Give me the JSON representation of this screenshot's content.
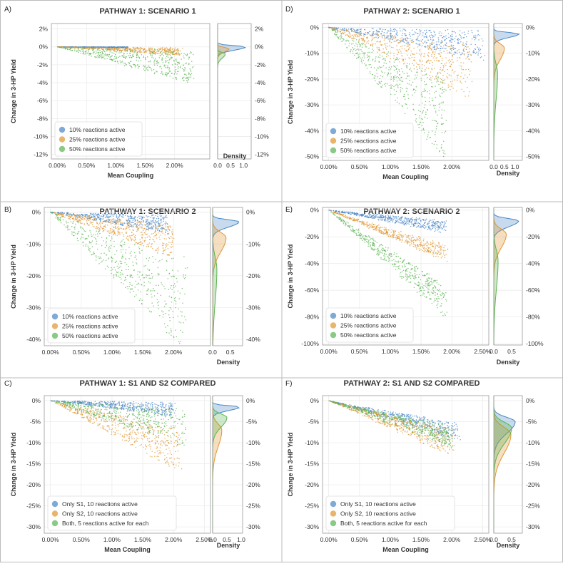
{
  "colors": {
    "s1": "#4a86c5",
    "s2": "#e0952f",
    "s3": "#59b350"
  },
  "chart_data": [
    {
      "panel": "A)",
      "title": "PATHWAY 1: SCENARIO 1",
      "type": "scatter",
      "xlabel": "Mean Coupling",
      "ylabel": "Change in 3-HP Yield",
      "density_label": "Density",
      "x_ticks": [
        "0.00%",
        "0.50%",
        "1.00%",
        "1.50%",
        "2.00%"
      ],
      "y_ticks": [
        "2%",
        "0%",
        "-2%",
        "-4%",
        "-6%",
        "-8%",
        "-10%",
        "-12%"
      ],
      "density_ticks": [
        "0.0",
        "0.5",
        "1.0"
      ],
      "xlim": [
        -0.1,
        2.6
      ],
      "ylim": [
        -12.5,
        2.6
      ],
      "dlim": [
        0,
        1.3
      ],
      "legend": [
        "10% reactions active",
        "25% reactions active",
        "50% reactions active"
      ],
      "legend_position": "lower-left",
      "series": [
        {
          "slope_range": [
            0,
            -0.1
          ],
          "x_max": 1.2,
          "density_peak_y": 0,
          "density_height": 1.1
        },
        {
          "slope_range": [
            -0.05,
            -0.45
          ],
          "x_max": 2.1,
          "density_peak_y": -0.2,
          "density_height": 0.45
        },
        {
          "slope_range": [
            -0.2,
            -1.8
          ],
          "x_max": 2.3,
          "density_peak_y": -0.8,
          "density_height": 0.3
        }
      ]
    },
    {
      "panel": "B)",
      "title": "PATHWAY 1: SCENARIO 2",
      "type": "scatter",
      "xlabel": "",
      "ylabel": "Change in 3-HP Yield",
      "density_label": "Density",
      "x_ticks": [
        "0.00%",
        "0.50%",
        "1.00%",
        "1.50%",
        "2.00%"
      ],
      "y_ticks": [
        "0%",
        "-10%",
        "-20%",
        "-30%",
        "-40%"
      ],
      "density_ticks": [
        "0.0",
        "0.5"
      ],
      "xlim": [
        -0.1,
        2.6
      ],
      "ylim": [
        -42,
        1.5
      ],
      "dlim": [
        0,
        0.85
      ],
      "legend": [
        "10% reactions active",
        "25% reactions active",
        "50% reactions active"
      ],
      "legend_position": "lower-left",
      "series": [
        {
          "slope_range": [
            -0.5,
            -3.5
          ],
          "x_max": 1.9,
          "density_peak_y": -3,
          "density_height": 0.75
        },
        {
          "slope_range": [
            -2,
            -7
          ],
          "x_max": 2.0,
          "density_peak_y": -8,
          "density_height": 0.38
        },
        {
          "slope_range": [
            -7,
            -20
          ],
          "x_max": 2.2,
          "density_peak_y": -18,
          "density_height": 0.12
        }
      ]
    },
    {
      "panel": "C)",
      "title": "PATHWAY 1: S1 AND S2 COMPARED",
      "type": "scatter",
      "xlabel": "Mean Coupling",
      "ylabel": "Change in 3-HP Yield",
      "density_label": "Density",
      "x_ticks": [
        "0.00%",
        "0.50%",
        "1.00%",
        "1.50%",
        "2.00%",
        "2.50%"
      ],
      "y_ticks": [
        "0%",
        "-5%",
        "-10%",
        "-15%",
        "-20%",
        "-25%",
        "-30%"
      ],
      "density_ticks": [
        "0.0",
        "0.5",
        "1.0"
      ],
      "xlim": [
        -0.1,
        2.6
      ],
      "ylim": [
        -31.5,
        1.2
      ],
      "dlim": [
        0,
        1.05
      ],
      "legend": [
        "Only S1, 10 reactions active",
        "Only S2, 10 reactions active",
        "Both, 5 reactions active for each"
      ],
      "legend_position": "lower-left",
      "series": [
        {
          "slope_range": [
            -0.2,
            -1.8
          ],
          "x_max": 2.0,
          "density_peak_y": -1.5,
          "density_height": 0.95
        },
        {
          "slope_range": [
            -3,
            -8
          ],
          "x_max": 2.1,
          "density_peak_y": -7,
          "density_height": 0.32
        },
        {
          "slope_range": [
            -1,
            -5
          ],
          "x_max": 2.2,
          "density_peak_y": -4,
          "density_height": 0.5
        }
      ]
    },
    {
      "panel": "D)",
      "title": "PATHWAY 2: SCENARIO 1",
      "type": "scatter",
      "xlabel": "Mean Coupling",
      "ylabel": "Change in 3-HP Yield",
      "density_label": "Density",
      "x_ticks": [
        "0.00%",
        "0.50%",
        "1.00%",
        "1.50%",
        "2.00%"
      ],
      "y_ticks": [
        "0%",
        "-10%",
        "-20%",
        "-30%",
        "-40%",
        "-50%"
      ],
      "density_ticks": [
        "0.0",
        "0.5",
        "1.0"
      ],
      "xlim": [
        -0.1,
        2.6
      ],
      "ylim": [
        -51.5,
        1.5
      ],
      "dlim": [
        0,
        1.35
      ],
      "legend": [
        "10% reactions active",
        "25% reactions active",
        "50% reactions active"
      ],
      "legend_position": "lower-left",
      "series": [
        {
          "slope_range": [
            -0.5,
            -5
          ],
          "x_max": 2.5,
          "density_peak_y": -2.5,
          "density_height": 1.2
        },
        {
          "slope_range": [
            -3,
            -12
          ],
          "x_max": 2.3,
          "density_peak_y": -8,
          "density_height": 0.5
        },
        {
          "slope_range": [
            -10,
            -27
          ],
          "x_max": 1.9,
          "density_peak_y": -18,
          "density_height": 0.18
        }
      ]
    },
    {
      "panel": "E)",
      "title": "PATHWAY 2: SCENARIO 2",
      "type": "scatter",
      "xlabel": "",
      "ylabel": "Change in 3-HP Yield",
      "density_label": "Density",
      "x_ticks": [
        "0.00%",
        "0.50%",
        "1.00%",
        "1.50%",
        "2.00%",
        "2.50%"
      ],
      "y_ticks": [
        "0%",
        "-20%",
        "-40%",
        "-60%",
        "-80%",
        "-100%"
      ],
      "density_ticks": [
        "0.0",
        "0.5"
      ],
      "xlim": [
        -0.1,
        2.6
      ],
      "ylim": [
        -101,
        2
      ],
      "dlim": [
        0,
        0.8
      ],
      "legend": [
        "10% reactions active",
        "25% reactions active",
        "50% reactions active"
      ],
      "legend_position": "lower-left",
      "series": [
        {
          "slope_range": [
            -4,
            -9
          ],
          "x_max": 1.9,
          "density_peak_y": -8,
          "density_height": 0.7
        },
        {
          "slope_range": [
            -14,
            -20
          ],
          "x_max": 1.9,
          "density_peak_y": -18,
          "density_height": 0.35
        },
        {
          "slope_range": [
            -30,
            -42
          ],
          "x_max": 1.9,
          "density_peak_y": -38,
          "density_height": 0.12
        }
      ]
    },
    {
      "panel": "F)",
      "title": "PATHWAY 2: S1 AND S2 COMPARED",
      "type": "scatter",
      "xlabel": "Mean Coupling",
      "ylabel": "Change in 3-HP Yield",
      "density_label": "Density",
      "x_ticks": [
        "0.00%",
        "0.50%",
        "1.00%",
        "1.50%",
        "2.00%",
        "2.50%"
      ],
      "y_ticks": [
        "0%",
        "-5%",
        "-10%",
        "-15%",
        "-20%",
        "-25%",
        "-30%"
      ],
      "density_ticks": [
        "0.0",
        "0.5"
      ],
      "xlim": [
        -0.1,
        2.6
      ],
      "ylim": [
        -31.5,
        1.2
      ],
      "dlim": [
        0,
        0.8
      ],
      "legend": [
        "Only S1, 10 reactions active",
        "Only S2, 10 reactions active",
        "Both, 5 reactions active for each"
      ],
      "legend_position": "lower-left",
      "series": [
        {
          "slope_range": [
            -2.5,
            -4.5
          ],
          "x_max": 2.1,
          "density_peak_y": -5,
          "density_height": 0.6
        },
        {
          "slope_range": [
            -3.5,
            -6.5
          ],
          "x_max": 2.0,
          "density_peak_y": -8,
          "density_height": 0.48
        },
        {
          "slope_range": [
            -3,
            -5.5
          ],
          "x_max": 2.0,
          "density_peak_y": -6.5,
          "density_height": 0.5
        }
      ]
    }
  ]
}
